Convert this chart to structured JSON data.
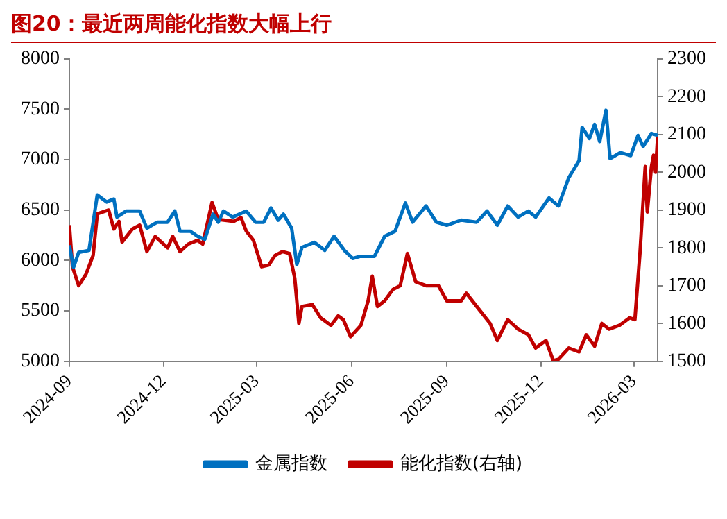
{
  "chart_data": {
    "type": "line",
    "title": "图20：最近两周能化指数大幅上行",
    "xlim": [
      "2024-09-01",
      "2026-03-24"
    ],
    "xticks": [
      "2024-09",
      "2024-12",
      "2025-03",
      "2025-06",
      "2025-09",
      "2025-12",
      "2026-03"
    ],
    "ylim": [
      5000,
      8000
    ],
    "yticks": [
      5000,
      5500,
      6000,
      6500,
      7000,
      7500,
      8000
    ],
    "y2lim": [
      1500,
      2300
    ],
    "y2ticks": [
      1500,
      1600,
      1700,
      1800,
      1900,
      2000,
      2100,
      2200,
      2300
    ],
    "grid": false,
    "legend": "bottom",
    "marker": "none",
    "line_style": "solid",
    "series": [
      {
        "name": "金属指数",
        "color": "#0070c0",
        "x": [
          "2024-09-01",
          "2024-09-05",
          "2024-09-10",
          "2024-09-20",
          "2024-09-28",
          "2024-10-07",
          "2024-10-14",
          "2024-10-17",
          "2024-10-26",
          "2024-11-08",
          "2024-11-15",
          "2024-11-25",
          "2024-12-05",
          "2024-12-12",
          "2024-12-17",
          "2024-12-27",
          "2025-01-03",
          "2025-01-10",
          "2025-01-18",
          "2025-01-23",
          "2025-01-28",
          "2025-02-06",
          "2025-02-19",
          "2025-02-28",
          "2025-03-08",
          "2025-03-15",
          "2025-03-22",
          "2025-03-27",
          "2025-04-04",
          "2025-04-09",
          "2025-04-14",
          "2025-04-26",
          "2025-05-06",
          "2025-05-15",
          "2025-05-25",
          "2025-06-02",
          "2025-06-09",
          "2025-06-21",
          "2025-06-23",
          "2025-07-03",
          "2025-07-13",
          "2025-07-23",
          "2025-07-30",
          "2025-08-12",
          "2025-08-22",
          "2025-09-01",
          "2025-09-15",
          "2025-09-30",
          "2025-10-10",
          "2025-10-20",
          "2025-10-30",
          "2025-11-09",
          "2025-11-19",
          "2025-11-26",
          "2025-12-09",
          "2025-12-18",
          "2025-12-28",
          "2026-01-07",
          "2026-01-10",
          "2026-01-17",
          "2026-01-22",
          "2026-01-27",
          "2026-02-02",
          "2026-02-06",
          "2026-02-16",
          "2026-02-26",
          "2026-03-05",
          "2026-03-10",
          "2026-03-18",
          "2026-03-24"
        ],
        "values": [
          6150,
          5930,
          6080,
          6100,
          6650,
          6580,
          6610,
          6430,
          6490,
          6490,
          6320,
          6380,
          6380,
          6490,
          6290,
          6290,
          6240,
          6210,
          6460,
          6380,
          6490,
          6430,
          6490,
          6380,
          6380,
          6520,
          6400,
          6460,
          6320,
          5960,
          6130,
          6180,
          6100,
          6240,
          6100,
          6020,
          6040,
          6040,
          6040,
          6240,
          6290,
          6570,
          6380,
          6540,
          6380,
          6350,
          6400,
          6380,
          6490,
          6350,
          6540,
          6430,
          6490,
          6430,
          6620,
          6540,
          6820,
          6990,
          7320,
          7210,
          7350,
          7180,
          7490,
          7010,
          7070,
          7040,
          7240,
          7130,
          7260,
          7240
        ]
      },
      {
        "name": "能化指数(右轴)",
        "color": "#c00000",
        "axis": "y2",
        "x": [
          "2024-09-01",
          "2024-09-04",
          "2024-09-10",
          "2024-09-17",
          "2024-09-24",
          "2024-09-28",
          "2024-10-09",
          "2024-10-14",
          "2024-10-19",
          "2024-10-22",
          "2024-11-01",
          "2024-11-08",
          "2024-11-15",
          "2024-11-23",
          "2024-12-05",
          "2024-12-10",
          "2024-12-17",
          "2024-12-25",
          "2025-01-03",
          "2025-01-08",
          "2025-01-17",
          "2025-01-23",
          "2025-02-07",
          "2025-02-14",
          "2025-02-19",
          "2025-02-26",
          "2025-03-06",
          "2025-03-13",
          "2025-03-19",
          "2025-03-26",
          "2025-04-02",
          "2025-04-07",
          "2025-04-11",
          "2025-04-14",
          "2025-04-24",
          "2025-05-02",
          "2025-05-12",
          "2025-05-19",
          "2025-05-24",
          "2025-05-31",
          "2025-06-10",
          "2025-06-17",
          "2025-06-21",
          "2025-06-26",
          "2025-07-03",
          "2025-07-11",
          "2025-07-18",
          "2025-07-25",
          "2025-08-02",
          "2025-08-12",
          "2025-08-24",
          "2025-09-01",
          "2025-09-15",
          "2025-09-20",
          "2025-09-30",
          "2025-10-13",
          "2025-10-20",
          "2025-10-30",
          "2025-11-09",
          "2025-11-19",
          "2025-11-26",
          "2025-12-06",
          "2025-12-13",
          "2025-12-18",
          "2025-12-28",
          "2026-01-07",
          "2026-01-14",
          "2026-01-22",
          "2026-01-29",
          "2026-02-05",
          "2026-02-15",
          "2026-02-25",
          "2026-03-02",
          "2026-03-07",
          "2026-03-12",
          "2026-03-14",
          "2026-03-18",
          "2026-03-20",
          "2026-03-22",
          "2026-03-24"
        ],
        "values": [
          1860,
          1750,
          1700,
          1730,
          1780,
          1890,
          1900,
          1850,
          1870,
          1815,
          1850,
          1860,
          1790,
          1830,
          1800,
          1830,
          1790,
          1810,
          1820,
          1810,
          1920,
          1875,
          1870,
          1880,
          1845,
          1820,
          1750,
          1755,
          1780,
          1790,
          1785,
          1720,
          1600,
          1645,
          1650,
          1615,
          1595,
          1620,
          1610,
          1565,
          1595,
          1660,
          1725,
          1645,
          1660,
          1690,
          1700,
          1785,
          1710,
          1700,
          1700,
          1660,
          1660,
          1680,
          1645,
          1600,
          1555,
          1610,
          1585,
          1570,
          1535,
          1555,
          1502,
          1505,
          1535,
          1525,
          1570,
          1540,
          1600,
          1585,
          1595,
          1615,
          1610,
          1790,
          2015,
          1895,
          2015,
          2045,
          2000,
          2095
        ]
      }
    ]
  }
}
